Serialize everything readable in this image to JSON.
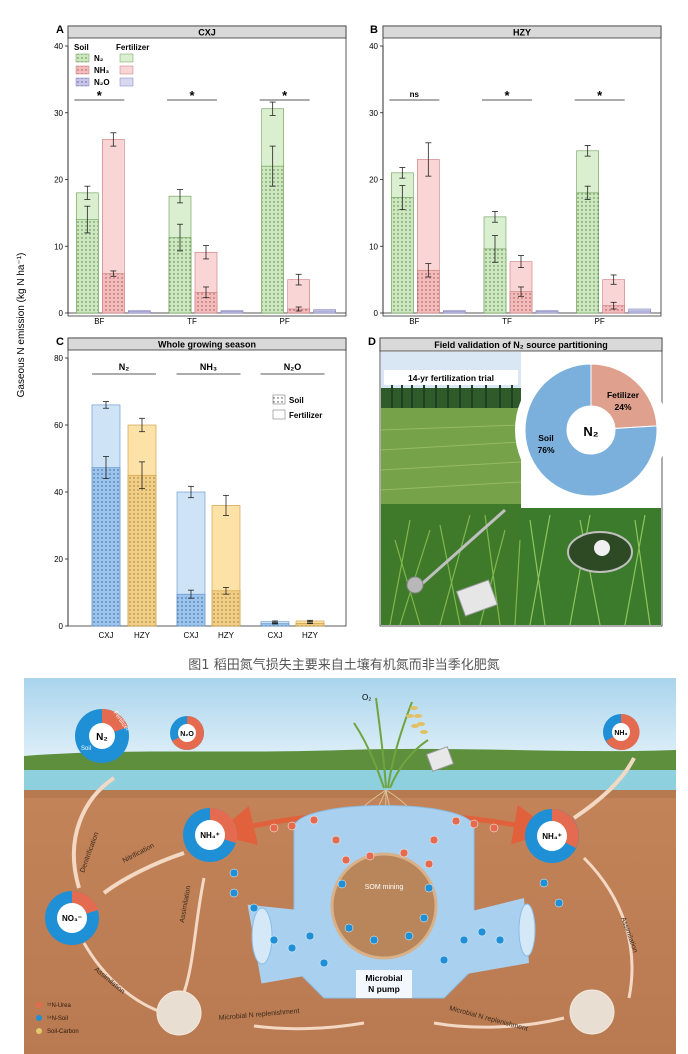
{
  "figure": {
    "y_axis_label": "Gaseous N emission (kg N ha⁻¹)",
    "caption": "图1 稻田氮气损失主要来自土壤有机氮而非当季化肥氮"
  },
  "legend_A": {
    "soil_header": "Soil",
    "fert_header": "Fertilizer",
    "n2": "N₂",
    "nh3": "NH₃",
    "n2o": "N₂O"
  },
  "chart_data": [
    {
      "panel": "A",
      "type": "bar",
      "title": "CXJ",
      "categories": [
        "BF",
        "TF",
        "PF"
      ],
      "ylim": [
        0,
        40
      ],
      "yticks": [
        0,
        10,
        20,
        30,
        40
      ],
      "series": [
        {
          "name": "N₂",
          "total": [
            18,
            17.5,
            30.6
          ],
          "soil": [
            14,
            11.3,
            22
          ],
          "total_err": [
            1,
            1,
            1
          ],
          "soil_err": [
            2,
            2,
            3
          ]
        },
        {
          "name": "NH₃",
          "total": [
            26,
            9.1,
            5
          ],
          "soil": [
            5.9,
            3.1,
            0.6
          ],
          "total_err": [
            1,
            1,
            0.8
          ],
          "soil_err": [
            0.4,
            0.8,
            0.3
          ]
        },
        {
          "name": "N₂O",
          "total": [
            0.35,
            0.35,
            0.5
          ],
          "soil": [
            0.2,
            0.2,
            0.3
          ]
        }
      ],
      "significance": [
        "*",
        "*",
        "*"
      ]
    },
    {
      "panel": "B",
      "type": "bar",
      "title": "HZY",
      "categories": [
        "BF",
        "TF",
        "PF"
      ],
      "ylim": [
        0,
        40
      ],
      "yticks": [
        0,
        10,
        20,
        30,
        40
      ],
      "series": [
        {
          "name": "N₂",
          "total": [
            21,
            14.4,
            24.3
          ],
          "soil": [
            17.3,
            9.6,
            18
          ],
          "total_err": [
            0.8,
            0.8,
            0.8
          ],
          "soil_err": [
            1.8,
            2,
            1
          ]
        },
        {
          "name": "NH₃",
          "total": [
            23,
            7.7,
            5
          ],
          "soil": [
            6.4,
            3.2,
            1.1
          ],
          "total_err": [
            2.5,
            0.9,
            0.7
          ],
          "soil_err": [
            1,
            0.7,
            0.5
          ]
        },
        {
          "name": "N₂O",
          "total": [
            0.35,
            0.35,
            0.6
          ],
          "soil": [
            0.2,
            0.2,
            0.3
          ]
        }
      ],
      "significance": [
        "ns",
        "*",
        "*"
      ]
    },
    {
      "panel": "C",
      "type": "bar",
      "title": "Whole growing season",
      "groups": [
        "N₂",
        "NH₃",
        "N₂O"
      ],
      "categories": [
        "CXJ",
        "HZY",
        "CXJ",
        "HZY",
        "CXJ",
        "HZY"
      ],
      "ylim": [
        0,
        80
      ],
      "yticks": [
        0,
        20,
        40,
        60,
        80
      ],
      "total": [
        66,
        60,
        40,
        36,
        1.3,
        1.5
      ],
      "soil": [
        47.3,
        45,
        9.5,
        10.5,
        0.7,
        0.8
      ],
      "total_err": [
        1,
        2,
        1.7,
        3,
        0.2,
        0.2
      ],
      "soil_err": [
        3.3,
        4,
        1.2,
        1,
        0.1,
        0.1
      ],
      "legend": [
        "Soil",
        "Fertilizer"
      ]
    }
  ],
  "panel_D": {
    "title": "Field validation of N₂ source partitioning",
    "photo_label": "14-yr fertilization trial",
    "donut_center": "N₂",
    "soil_label": "Soil",
    "soil_pct": "76%",
    "soil_value": 76,
    "fert_label": "Fetilizer",
    "fert_pct": "24%",
    "fert_value": 24
  },
  "schematic": {
    "o2": "O₂",
    "n2_donut": "N₂",
    "fertilizer": "Fertilizer",
    "soil": "Soil",
    "n2o_donut": "N₂O",
    "nh3_donut": "NH₃",
    "nh4_left": "NH₄⁺",
    "nh4_right": "NH₄⁺",
    "no3": "NO₃⁻",
    "denitrification": "Denitrification",
    "nitrification": "Nitrification",
    "assimilation_1": "Assimilation",
    "assimilation_2": "Assimilation",
    "assimilation_3": "Assimilation",
    "som_mining": "SOM mining",
    "pump_1": "Microbial",
    "pump_2": "N pump",
    "replenish_left": "Microbial N replenishment",
    "replenish_right": "Microbial N replenishment",
    "legend_urea": "¹⁵N-Urea",
    "legend_soil": "¹⁴N-Soil",
    "legend_carbon": "Soil-Carbon"
  }
}
